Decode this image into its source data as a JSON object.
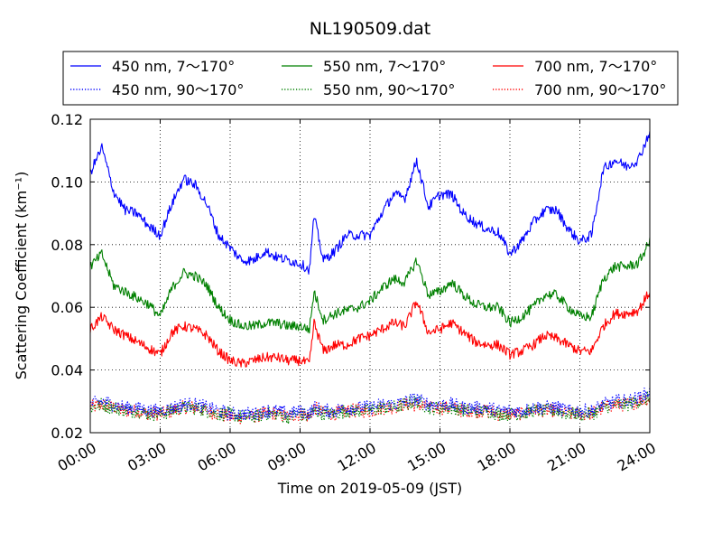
{
  "chart_data": {
    "type": "line",
    "title": "NL190509.dat",
    "xlabel": "Time on 2019-05-09 (JST)",
    "ylabel": "Scattering Coefficient (km⁻¹)",
    "xlim_hours": [
      0,
      24
    ],
    "ylim": [
      0.02,
      0.12
    ],
    "xticks": [
      "00:00",
      "03:00",
      "06:00",
      "09:00",
      "12:00",
      "15:00",
      "18:00",
      "21:00",
      "24:00"
    ],
    "yticks": [
      "0.02",
      "0.04",
      "0.06",
      "0.08",
      "0.10",
      "0.12"
    ],
    "grid": true,
    "legend_position": "above plot",
    "x_hours": [
      0,
      0.5,
      1,
      1.5,
      2,
      2.5,
      3,
      3.5,
      4,
      4.5,
      5,
      5.5,
      6,
      6.5,
      7,
      7.5,
      8,
      8.5,
      9,
      9.4,
      9.6,
      10,
      10.5,
      11,
      11.5,
      12,
      12.5,
      13,
      13.5,
      14,
      14.5,
      15,
      15.5,
      16,
      16.5,
      17,
      17.5,
      18,
      18.5,
      19,
      19.5,
      20,
      20.5,
      21,
      21.5,
      22,
      22.5,
      23,
      23.5,
      24
    ],
    "series": [
      {
        "name": "450 nm, 7～170°",
        "color": "#0000ff",
        "style": "solid",
        "values": [
          0.103,
          0.111,
          0.097,
          0.091,
          0.09,
          0.086,
          0.083,
          0.093,
          0.101,
          0.099,
          0.093,
          0.083,
          0.079,
          0.075,
          0.075,
          0.078,
          0.076,
          0.075,
          0.074,
          0.072,
          0.089,
          0.075,
          0.078,
          0.083,
          0.083,
          0.083,
          0.09,
          0.096,
          0.095,
          0.107,
          0.092,
          0.096,
          0.096,
          0.09,
          0.087,
          0.085,
          0.084,
          0.077,
          0.081,
          0.087,
          0.091,
          0.091,
          0.085,
          0.081,
          0.083,
          0.104,
          0.107,
          0.105,
          0.107,
          0.116
        ]
      },
      {
        "name": "450 nm, 90～170°",
        "color": "#0000ff",
        "style": "dotted",
        "values": [
          0.029,
          0.03,
          0.029,
          0.028,
          0.028,
          0.027,
          0.027,
          0.028,
          0.029,
          0.029,
          0.028,
          0.027,
          0.026,
          0.026,
          0.026,
          0.027,
          0.027,
          0.026,
          0.027,
          0.026,
          0.028,
          0.027,
          0.027,
          0.028,
          0.028,
          0.028,
          0.029,
          0.029,
          0.03,
          0.031,
          0.029,
          0.029,
          0.029,
          0.028,
          0.028,
          0.028,
          0.027,
          0.027,
          0.027,
          0.028,
          0.028,
          0.028,
          0.027,
          0.027,
          0.027,
          0.029,
          0.03,
          0.03,
          0.031,
          0.033
        ]
      },
      {
        "name": "550 nm, 7～170°",
        "color": "#008000",
        "style": "solid",
        "values": [
          0.073,
          0.077,
          0.067,
          0.065,
          0.063,
          0.061,
          0.057,
          0.066,
          0.071,
          0.07,
          0.067,
          0.06,
          0.056,
          0.054,
          0.054,
          0.055,
          0.055,
          0.054,
          0.054,
          0.053,
          0.065,
          0.056,
          0.058,
          0.059,
          0.06,
          0.062,
          0.066,
          0.069,
          0.068,
          0.075,
          0.064,
          0.065,
          0.068,
          0.064,
          0.061,
          0.06,
          0.06,
          0.055,
          0.057,
          0.06,
          0.064,
          0.064,
          0.06,
          0.057,
          0.057,
          0.069,
          0.073,
          0.073,
          0.074,
          0.081
        ]
      },
      {
        "name": "550 nm, 90～170°",
        "color": "#008000",
        "style": "dotted",
        "values": [
          0.028,
          0.029,
          0.028,
          0.027,
          0.027,
          0.026,
          0.026,
          0.027,
          0.028,
          0.028,
          0.027,
          0.026,
          0.026,
          0.025,
          0.025,
          0.026,
          0.026,
          0.025,
          0.026,
          0.025,
          0.027,
          0.026,
          0.026,
          0.027,
          0.027,
          0.027,
          0.028,
          0.028,
          0.029,
          0.03,
          0.028,
          0.028,
          0.028,
          0.027,
          0.027,
          0.027,
          0.026,
          0.026,
          0.026,
          0.027,
          0.027,
          0.027,
          0.026,
          0.026,
          0.026,
          0.028,
          0.029,
          0.029,
          0.03,
          0.031
        ]
      },
      {
        "name": "700 nm, 7～170°",
        "color": "#ff0000",
        "style": "solid",
        "values": [
          0.053,
          0.057,
          0.053,
          0.051,
          0.049,
          0.047,
          0.045,
          0.052,
          0.054,
          0.053,
          0.051,
          0.046,
          0.043,
          0.042,
          0.043,
          0.044,
          0.044,
          0.043,
          0.043,
          0.042,
          0.055,
          0.046,
          0.048,
          0.048,
          0.05,
          0.051,
          0.053,
          0.055,
          0.054,
          0.062,
          0.052,
          0.053,
          0.055,
          0.052,
          0.049,
          0.048,
          0.048,
          0.045,
          0.046,
          0.048,
          0.051,
          0.05,
          0.048,
          0.046,
          0.046,
          0.054,
          0.058,
          0.058,
          0.059,
          0.065
        ]
      },
      {
        "name": "700 nm, 90～170°",
        "color": "#ff0000",
        "style": "dotted",
        "values": [
          0.028,
          0.029,
          0.028,
          0.027,
          0.027,
          0.026,
          0.026,
          0.027,
          0.028,
          0.028,
          0.027,
          0.026,
          0.025,
          0.025,
          0.025,
          0.026,
          0.026,
          0.025,
          0.026,
          0.025,
          0.028,
          0.026,
          0.026,
          0.027,
          0.027,
          0.027,
          0.028,
          0.028,
          0.029,
          0.029,
          0.028,
          0.028,
          0.028,
          0.027,
          0.027,
          0.027,
          0.026,
          0.026,
          0.026,
          0.027,
          0.027,
          0.027,
          0.026,
          0.026,
          0.026,
          0.028,
          0.029,
          0.029,
          0.03,
          0.031
        ]
      }
    ]
  }
}
